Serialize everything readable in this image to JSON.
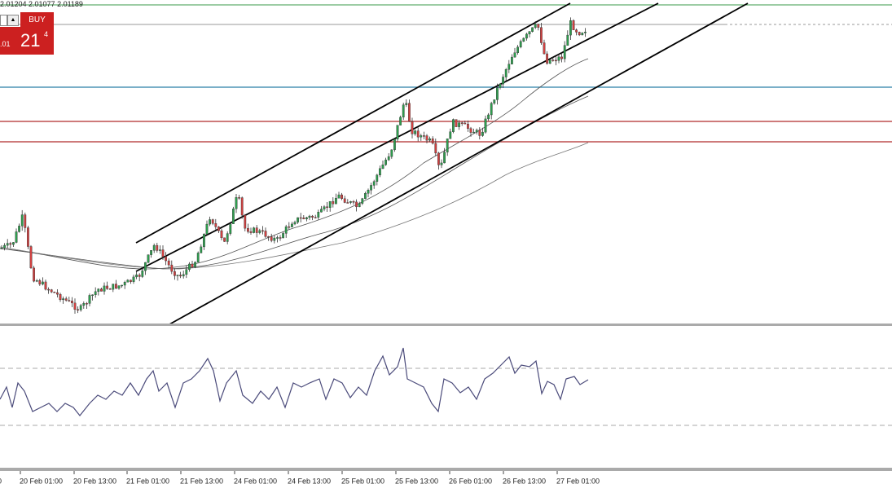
{
  "header": {
    "ohlc": "2.01204 2.01077 2.01189"
  },
  "trade_panel": {
    "button": "BUY",
    "price_prefix": ".01",
    "price_big": "21",
    "price_small": "4"
  },
  "time_axis": {
    "labels": [
      "00",
      "20 Feb 01:00",
      "20 Feb 13:00",
      "21 Feb 01:00",
      "21 Feb 13:00",
      "24 Feb 01:00",
      "24 Feb 13:00",
      "25 Feb 01:00",
      "25 Feb 13:00",
      "26 Feb 01:00",
      "26 Feb 13:00",
      "27 Feb 01:00"
    ]
  }
}
